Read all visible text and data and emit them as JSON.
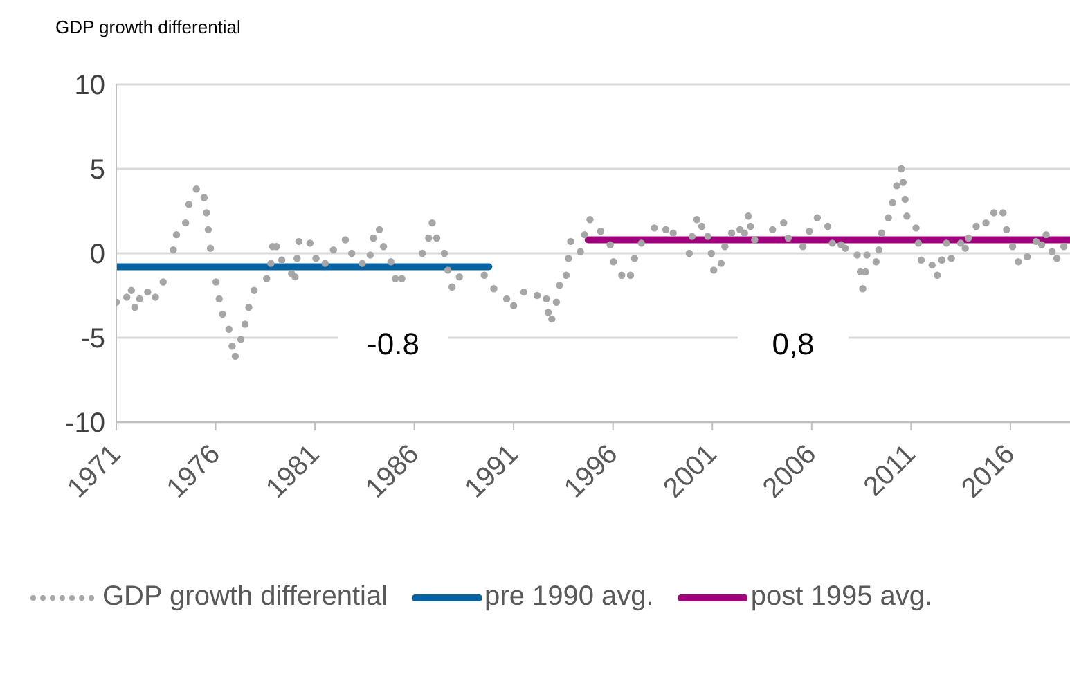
{
  "chart_data": {
    "type": "scatter",
    "title": "GDP growth differential",
    "xlim": [
      1971,
      2019
    ],
    "xticks": [
      1971,
      1976,
      1981,
      1986,
      1991,
      1996,
      2001,
      2006,
      2011,
      2016
    ],
    "ylim": [
      -10,
      10
    ],
    "yticks": [
      -10,
      -5,
      0,
      5,
      10
    ],
    "grid": "y",
    "legend": "bottom",
    "series": [
      {
        "name": "GDP growth differential",
        "marker": "circle",
        "color": "#a6a6a6",
        "x": [
          1971.0,
          1971.53,
          1971.76,
          1971.93,
          1972.18,
          1972.58,
          1972.97,
          1973.36,
          1973.87,
          1974.03,
          1974.49,
          1974.66,
          1975.03,
          1975.42,
          1975.54,
          1975.63,
          1975.74,
          1976.02,
          1976.18,
          1976.35,
          1976.67,
          1976.83,
          1976.99,
          1977.27,
          1977.48,
          1977.67,
          1977.94,
          1978.57,
          1978.78,
          1978.87,
          1979.06,
          1979.33,
          1979.82,
          1980.0,
          1980.1,
          1980.19,
          1980.75,
          1981.05,
          1981.51,
          1981.93,
          1982.53,
          1982.85,
          1983.38,
          1983.78,
          1983.94,
          1984.24,
          1984.45,
          1984.82,
          1985.05,
          1985.37,
          1986.4,
          1986.72,
          1986.9,
          1987.13,
          1987.51,
          1987.69,
          1987.9,
          1988.27,
          1989.52,
          1990.0,
          1990.65,
          1991.0,
          1991.51,
          1992.18,
          1992.65,
          1992.74,
          1992.92,
          1993.15,
          1993.31,
          1993.64,
          1993.76,
          1993.87,
          1994.36,
          1994.57,
          1994.84,
          1995.38,
          1995.86,
          1996.02,
          1996.44,
          1996.88,
          1997.08,
          1997.43,
          1998.08,
          1998.66,
          1999.03,
          1999.84,
          1999.98,
          2000.22,
          2000.47,
          2000.77,
          2000.95,
          2001.07,
          2001.44,
          2001.63,
          2001.97,
          2002.39,
          2002.62,
          2002.81,
          2002.92,
          2003.13,
          2004.03,
          2004.59,
          2004.82,
          2005.56,
          2005.88,
          2006.28,
          2006.81,
          2007.04,
          2007.48,
          2007.69,
          2008.29,
          2008.45,
          2008.57,
          2008.71,
          2008.78,
          2009.24,
          2009.38,
          2009.52,
          2009.86,
          2010.07,
          2010.28,
          2010.51,
          2010.6,
          2010.7,
          2010.79,
          2011.25,
          2011.37,
          2011.51,
          2012.06,
          2012.32,
          2012.55,
          2012.78,
          2013.03,
          2013.5,
          2013.73,
          2013.89,
          2014.28,
          2014.77,
          2015.17,
          2015.63,
          2015.81,
          2016.11,
          2016.4,
          2016.85,
          2017.29,
          2017.57,
          2017.8,
          2018.1,
          2018.34,
          2018.69
        ],
        "values": [
          -2.9,
          -2.6,
          -2.2,
          -3.2,
          -2.7,
          -2.3,
          -2.6,
          -1.7,
          0.2,
          1.1,
          1.8,
          2.9,
          3.8,
          3.3,
          2.4,
          1.4,
          0.3,
          -1.7,
          -2.7,
          -3.6,
          -4.5,
          -5.5,
          -6.1,
          -5.1,
          -4.2,
          -3.2,
          -2.2,
          -1.5,
          -0.6,
          0.4,
          0.4,
          -0.4,
          -1.2,
          -1.4,
          -0.3,
          0.7,
          0.6,
          -0.3,
          -0.6,
          0.2,
          0.8,
          0,
          -0.6,
          -0.1,
          0.9,
          1.4,
          0.4,
          -0.5,
          -1.5,
          -1.5,
          0,
          0.9,
          1.8,
          0.9,
          0,
          -1.0,
          -2.0,
          -1.4,
          -1.3,
          -2.1,
          -2.7,
          -3.1,
          -2.3,
          -2.5,
          -2.7,
          -3.5,
          -3.9,
          -2.9,
          -1.9,
          -1.3,
          -0.3,
          0.7,
          0.1,
          1.1,
          2.0,
          1.3,
          0.5,
          -0.5,
          -1.3,
          -1.3,
          -0.3,
          0.6,
          1.5,
          1.4,
          1.2,
          0,
          1.0,
          2.0,
          1.6,
          1.0,
          0,
          -1.0,
          -0.6,
          0.4,
          1.2,
          1.4,
          1.2,
          2.2,
          1.6,
          0.8,
          1.4,
          1.8,
          0.9,
          0.4,
          1.3,
          2.1,
          1.6,
          0.6,
          0.5,
          0.3,
          -0.1,
          -1.1,
          -2.1,
          -1.1,
          -0.1,
          -0.5,
          0.2,
          1.2,
          2.1,
          3.0,
          4.0,
          5.0,
          4.2,
          3.2,
          2.2,
          1.5,
          0.6,
          -0.4,
          -0.7,
          -1.3,
          -0.4,
          0.6,
          -0.3,
          0.6,
          0.3,
          0.9,
          1.6,
          1.8,
          2.4,
          2.4,
          1.4,
          0.4,
          -0.5,
          -0.2,
          0.7,
          0.5,
          1.1,
          0.1,
          -0.3,
          0.4
        ]
      },
      {
        "name": "pre 1990 avg.",
        "type": "line",
        "color": "#0563a3",
        "x": [
          1971,
          1989.75
        ],
        "values": [
          -0.8,
          -0.8
        ]
      },
      {
        "name": "post 1995 avg.",
        "type": "line",
        "color": "#a0007c",
        "x": [
          1994.75,
          2019
        ],
        "values": [
          0.8,
          0.8
        ]
      }
    ],
    "annotations": [
      "-0.8",
      "0,8"
    ]
  }
}
